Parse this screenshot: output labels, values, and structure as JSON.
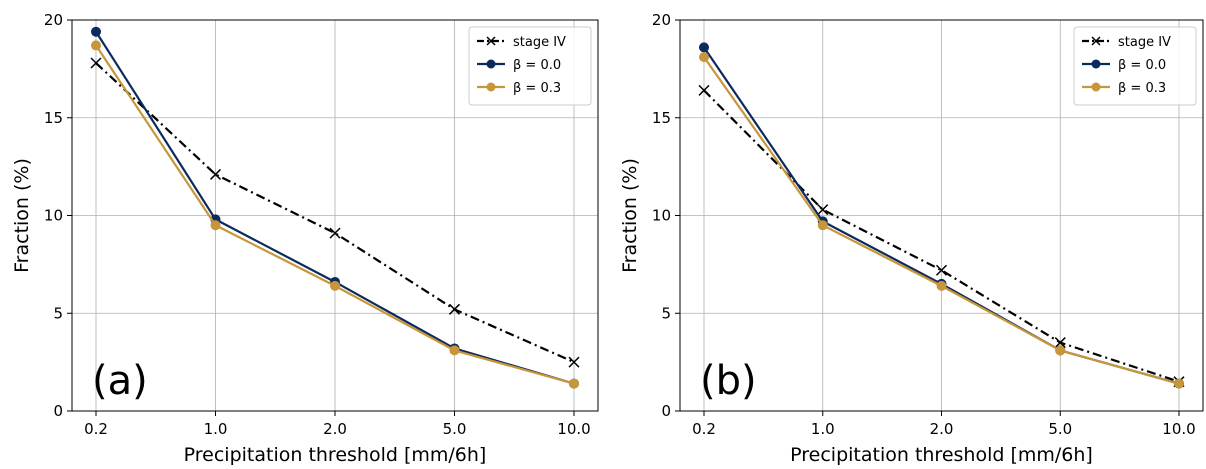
{
  "chart_data": [
    {
      "type": "line",
      "panel_label": "(a)",
      "xlabel": "Precipitation threshold [mm/6h]",
      "ylabel": "Fraction (%)",
      "categories": [
        "0.2",
        "1.0",
        "2.0",
        "5.0",
        "10.0"
      ],
      "ylim": [
        0,
        20
      ],
      "yticks": [
        "0",
        "5",
        "10",
        "15",
        "20"
      ],
      "grid": true,
      "legend_position": "top-right",
      "series": [
        {
          "name": "stage IV",
          "values": [
            17.8,
            12.1,
            9.1,
            5.2,
            2.5
          ],
          "color": "#000000",
          "style": "dashdot",
          "marker": "x"
        },
        {
          "name": "β = 0.0",
          "values": [
            19.4,
            9.8,
            6.6,
            3.2,
            1.4
          ],
          "color": "#0d2a5c",
          "style": "solid",
          "marker": "circle"
        },
        {
          "name": "β = 0.3",
          "values": [
            18.7,
            9.5,
            6.4,
            3.1,
            1.4
          ],
          "color": "#c8963a",
          "style": "solid",
          "marker": "circle"
        }
      ]
    },
    {
      "type": "line",
      "panel_label": "(b)",
      "xlabel": "Precipitation threshold [mm/6h]",
      "ylabel": "Fraction (%)",
      "categories": [
        "0.2",
        "1.0",
        "2.0",
        "5.0",
        "10.0"
      ],
      "ylim": [
        0,
        20
      ],
      "yticks": [
        "0",
        "5",
        "10",
        "15",
        "20"
      ],
      "grid": true,
      "legend_position": "top-right",
      "series": [
        {
          "name": "stage IV",
          "values": [
            16.4,
            10.3,
            7.2,
            3.5,
            1.5
          ],
          "color": "#000000",
          "style": "dashdot",
          "marker": "x"
        },
        {
          "name": "β = 0.0",
          "values": [
            18.6,
            9.7,
            6.5,
            3.1,
            1.4
          ],
          "color": "#0d2a5c",
          "style": "solid",
          "marker": "circle"
        },
        {
          "name": "β = 0.3",
          "values": [
            18.1,
            9.5,
            6.4,
            3.1,
            1.4
          ],
          "color": "#c8963a",
          "style": "solid",
          "marker": "circle"
        }
      ]
    }
  ]
}
